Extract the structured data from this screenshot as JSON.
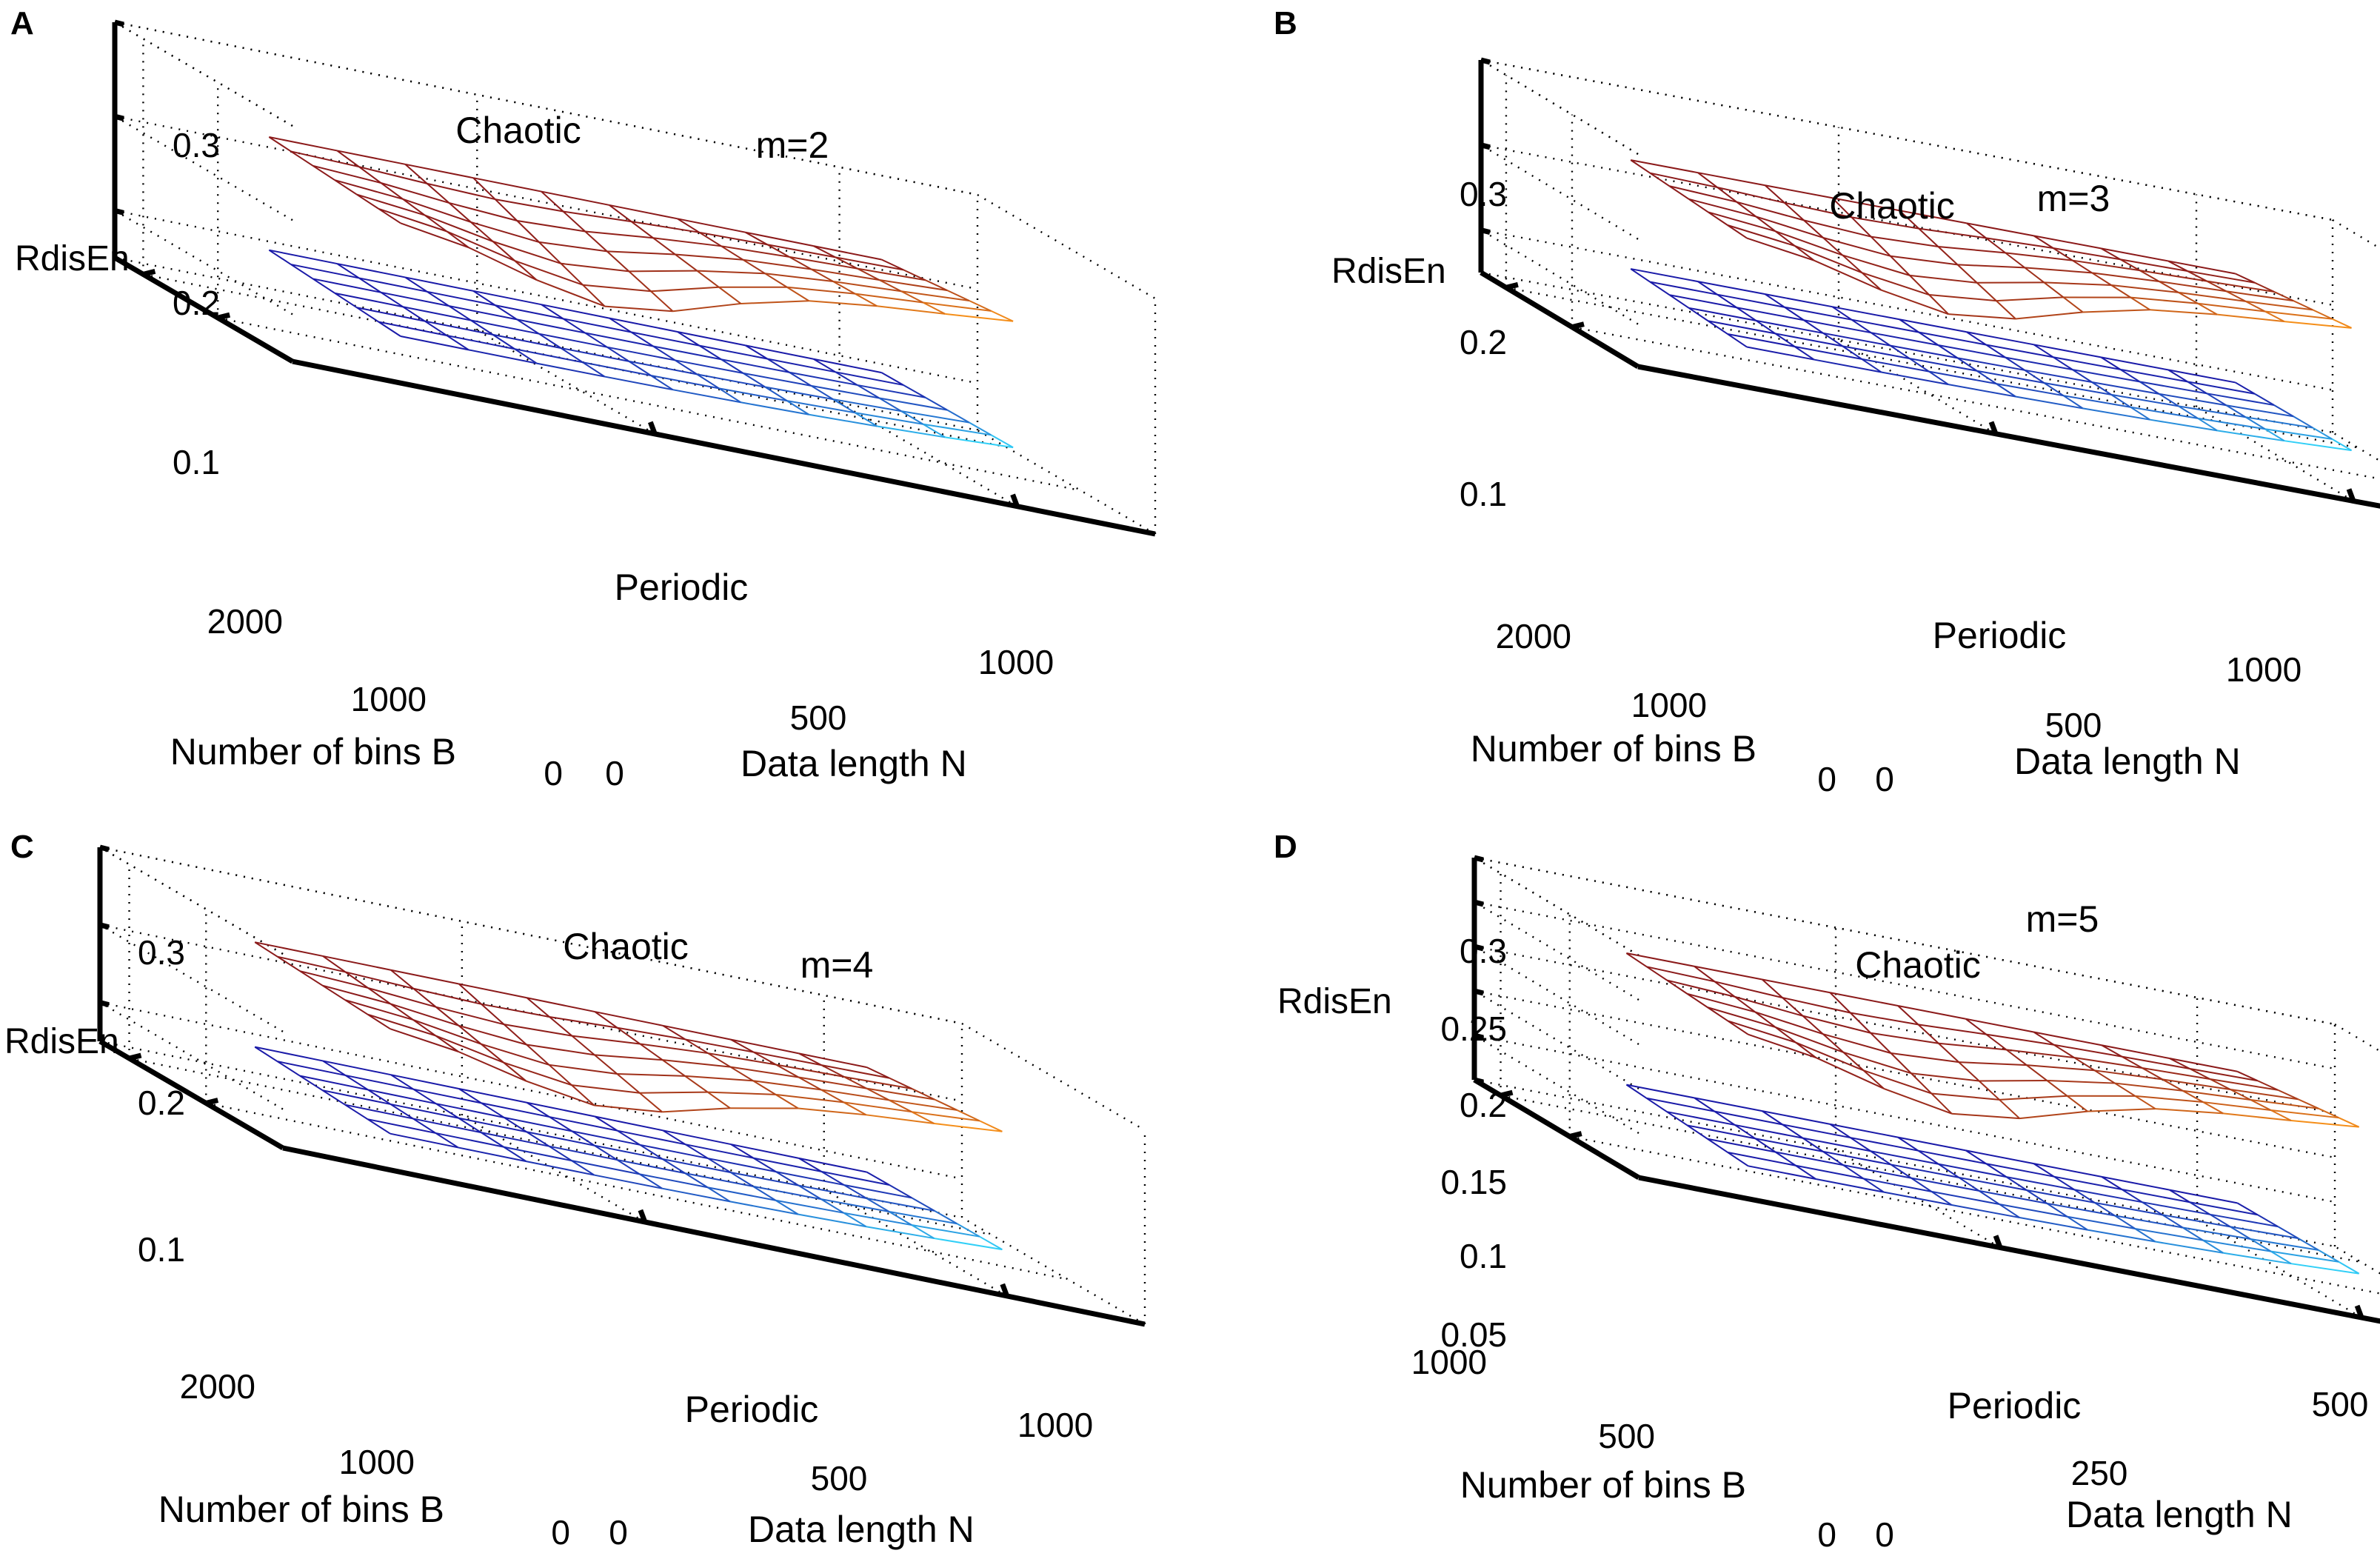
{
  "figure": {
    "panels": [
      "A",
      "B",
      "C",
      "D"
    ]
  },
  "chart_data": [
    {
      "panel": "A",
      "type": "surface3d",
      "annotation": "m=2",
      "zlabel": "RdisEn",
      "xlabel": "Data length N",
      "ylabel": "Number of bins B",
      "z_ticks": [
        "0.3",
        "0.2",
        "0.1"
      ],
      "x_ticks": [
        "0",
        "500",
        "1000"
      ],
      "y_ticks": [
        "0",
        "1000",
        "2000"
      ],
      "zlim": [
        0.05,
        0.3
      ],
      "xlim": [
        0,
        1200
      ],
      "ylim": [
        0,
        2400
      ],
      "series": [
        {
          "name": "Chaotic",
          "level": 0.215,
          "edge_rise": 0.022,
          "color_from": "#8b1a1a",
          "color_to": "#ff9a1a"
        },
        {
          "name": "Periodic",
          "level": 0.095,
          "edge_rise": 0.012,
          "color_from": "#1a1aa8",
          "color_to": "#33e0ff"
        }
      ]
    },
    {
      "panel": "B",
      "type": "surface3d",
      "annotation": "m=3",
      "zlabel": "RdisEn",
      "xlabel": "Data length N",
      "ylabel": "Number of bins B",
      "z_ticks": [
        "0.3",
        "0.2",
        "0.1"
      ],
      "x_ticks": [
        "0",
        "500",
        "1000"
      ],
      "y_ticks": [
        "0",
        "1000",
        "2000"
      ],
      "zlim": [
        0.05,
        0.3
      ],
      "xlim": [
        0,
        1200
      ],
      "ylim": [
        0,
        2400
      ],
      "series": [
        {
          "name": "Chaotic",
          "level": 0.22,
          "edge_rise": 0.024,
          "color_from": "#8b1a1a",
          "color_to": "#ff9a1a"
        },
        {
          "name": "Periodic",
          "level": 0.092,
          "edge_rise": 0.012,
          "color_from": "#1a1aa8",
          "color_to": "#33e0ff"
        }
      ]
    },
    {
      "panel": "C",
      "type": "surface3d",
      "annotation": "m=4",
      "zlabel": "RdisEn",
      "xlabel": "Data length N",
      "ylabel": "Number of bins B",
      "z_ticks": [
        "0.3",
        "0.2",
        "0.1"
      ],
      "x_ticks": [
        "0",
        "500",
        "1000"
      ],
      "y_ticks": [
        "0",
        "1000",
        "2000"
      ],
      "zlim": [
        0.05,
        0.3
      ],
      "xlim": [
        0,
        1200
      ],
      "ylim": [
        0,
        2400
      ],
      "series": [
        {
          "name": "Chaotic",
          "level": 0.225,
          "edge_rise": 0.025,
          "color_from": "#8b1a1a",
          "color_to": "#ff9a1a"
        },
        {
          "name": "Periodic",
          "level": 0.09,
          "edge_rise": 0.012,
          "color_from": "#1a1aa8",
          "color_to": "#33e0ff"
        }
      ]
    },
    {
      "panel": "D",
      "type": "surface3d",
      "annotation": "m=5",
      "zlabel": "RdisEn",
      "xlabel": "Data length N",
      "ylabel": "Number of bins B",
      "z_ticks": [
        "0.3",
        "0.25",
        "0.2",
        "0.15",
        "0.1",
        "0.05"
      ],
      "x_ticks": [
        "0",
        "250",
        "500"
      ],
      "y_ticks": [
        "0",
        "500",
        "1000"
      ],
      "zlim": [
        0.05,
        0.3
      ],
      "xlim": [
        0,
        500
      ],
      "ylim": [
        0,
        1000
      ],
      "series": [
        {
          "name": "Chaotic",
          "level": 0.23,
          "edge_rise": 0.025,
          "color_from": "#8b1a1a",
          "color_to": "#ff9a1a"
        },
        {
          "name": "Periodic",
          "level": 0.082,
          "edge_rise": 0.012,
          "color_from": "#1a1aa8",
          "color_to": "#33e0ff"
        }
      ]
    }
  ]
}
